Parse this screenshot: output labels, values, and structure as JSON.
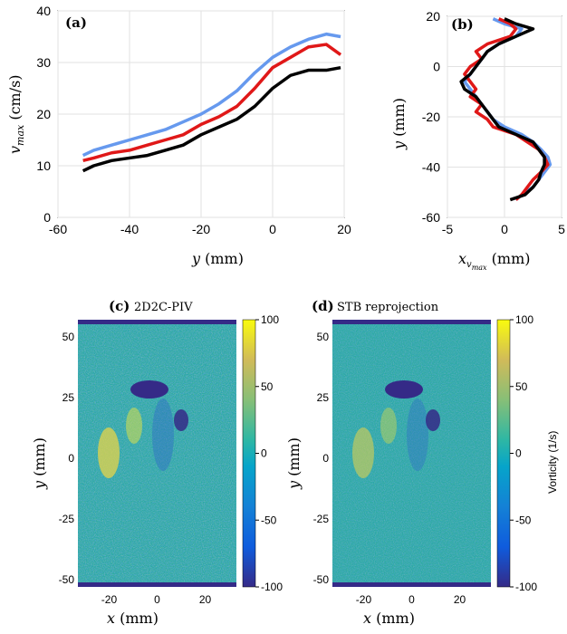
{
  "chart_data": [
    {
      "panel": "(a)",
      "type": "line",
      "xlabel": "y (mm)",
      "ylabel": "v_max (cm/s)",
      "xlim": [
        -60,
        20
      ],
      "ylim": [
        0,
        40
      ],
      "xticks": [
        -60,
        -40,
        -20,
        0,
        20
      ],
      "yticks": [
        0,
        10,
        20,
        30,
        40
      ],
      "grid": true,
      "series": [
        {
          "color": "#6699ee",
          "x": [
            -53,
            -50,
            -45,
            -40,
            -35,
            -30,
            -25,
            -20,
            -15,
            -10,
            -5,
            0,
            5,
            10,
            15,
            19
          ],
          "values": [
            12,
            13,
            14,
            15,
            16,
            17,
            18.5,
            20,
            22,
            24.5,
            28,
            31,
            33,
            34.5,
            35.5,
            35
          ]
        },
        {
          "color": "#e01818",
          "x": [
            -53,
            -50,
            -45,
            -40,
            -35,
            -30,
            -25,
            -20,
            -15,
            -10,
            -5,
            0,
            5,
            10,
            15,
            19
          ],
          "values": [
            11,
            11.5,
            12.5,
            13,
            14,
            15,
            16,
            18,
            19.5,
            21.5,
            25,
            29,
            31,
            33,
            33.5,
            31.5
          ]
        },
        {
          "color": "#000000",
          "x": [
            -53,
            -50,
            -45,
            -40,
            -35,
            -30,
            -25,
            -20,
            -15,
            -10,
            -5,
            0,
            5,
            10,
            15,
            19
          ],
          "values": [
            9,
            10,
            11,
            11.5,
            12,
            13,
            14,
            16,
            17.5,
            19,
            21.5,
            25,
            27.5,
            28.5,
            28.5,
            29
          ]
        }
      ]
    },
    {
      "panel": "(b)",
      "type": "line",
      "xlabel": "x_v_max (mm)",
      "ylabel": "y (mm)",
      "xlim": [
        -5,
        5
      ],
      "ylim": [
        -60,
        20
      ],
      "xticks": [
        -5,
        0,
        5
      ],
      "yticks": [
        -60,
        -40,
        -20,
        0,
        20
      ],
      "grid": true,
      "series": [
        {
          "color": "#6699ee",
          "y": [
            19,
            17,
            15,
            12,
            9,
            6,
            3,
            0,
            -3,
            -6,
            -9,
            -12,
            -15,
            -18,
            -21,
            -24,
            -27,
            -30,
            -33,
            -36,
            -39,
            -42,
            -45,
            -48,
            -51,
            -53
          ],
          "values": [
            -1,
            0,
            1.5,
            1,
            -0.5,
            -1.5,
            -2,
            -2.5,
            -3,
            -3.5,
            -3,
            -2.5,
            -2,
            -1.5,
            -1,
            0,
            1.5,
            2.5,
            3.2,
            3.8,
            4,
            3.5,
            3,
            2.5,
            1.5,
            1
          ]
        },
        {
          "color": "#e01818",
          "y": [
            19,
            17,
            15,
            12,
            9,
            6,
            3,
            0,
            -3,
            -6,
            -9,
            -12,
            -15,
            -18,
            -21,
            -24,
            -27,
            -30,
            -33,
            -36,
            -39,
            -42,
            -45,
            -48,
            -51,
            -53
          ],
          "values": [
            -0.5,
            0.5,
            1,
            0.5,
            -1.5,
            -2.5,
            -2,
            -3,
            -3.5,
            -3,
            -2.5,
            -3,
            -2,
            -2.5,
            -1.5,
            -1,
            1,
            2,
            3,
            3.5,
            3.8,
            3.2,
            2.5,
            2,
            1.5,
            1
          ]
        },
        {
          "color": "#000000",
          "y": [
            19,
            17,
            15,
            12,
            9,
            6,
            3,
            0,
            -3,
            -6,
            -9,
            -12,
            -15,
            -18,
            -21,
            -24,
            -27,
            -30,
            -33,
            -36,
            -39,
            -42,
            -45,
            -48,
            -51,
            -53
          ],
          "values": [
            0,
            1,
            2.5,
            1,
            -0.5,
            -1.5,
            -2,
            -2.5,
            -3,
            -3.8,
            -3.5,
            -2.5,
            -2,
            -1.5,
            -1,
            -0.5,
            1,
            2.5,
            3,
            3.5,
            3.5,
            3.2,
            3,
            2.5,
            1.8,
            0.5
          ]
        }
      ]
    },
    {
      "panel": "(c)",
      "title": "2D2C-PIV",
      "type": "heatmap",
      "xlabel": "x (mm)",
      "ylabel": "y (mm)",
      "xticks": [
        -20,
        0,
        20
      ],
      "yticks": [
        -50,
        -25,
        0,
        25,
        50
      ],
      "colorbar_ticks": [
        100,
        50,
        0,
        -50,
        -100
      ]
    },
    {
      "panel": "(d)",
      "title": "STB reprojection",
      "type": "heatmap",
      "xlabel": "x (mm)",
      "ylabel": "y (mm)",
      "xticks": [
        -20,
        0,
        20
      ],
      "yticks": [
        -50,
        -25,
        0,
        25,
        50
      ],
      "colorbar_ticks": [
        100,
        50,
        0,
        -50,
        -100
      ],
      "colorbar_label": "Vorticity (1/s)"
    }
  ]
}
